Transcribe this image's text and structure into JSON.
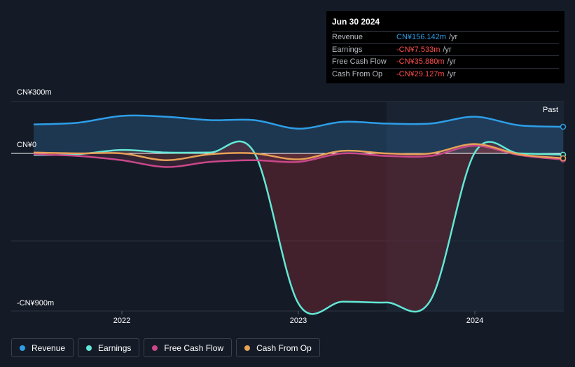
{
  "chart_data": {
    "type": "line",
    "x_ticks": [
      "2022",
      "2023",
      "2024"
    ],
    "y_ticks": [
      "CN¥300m",
      "CN¥0",
      "-CN¥900m"
    ],
    "region_label": "Past",
    "series": [
      {
        "name": "Revenue",
        "color": "#2d9ee8",
        "x": [
          2021.5,
          2021.75,
          2022.0,
          2022.25,
          2022.5,
          2022.75,
          2023.0,
          2023.25,
          2023.5,
          2023.75,
          2024.0,
          2024.25,
          2024.5
        ],
        "y": [
          170,
          180,
          220,
          215,
          195,
          195,
          145,
          185,
          175,
          175,
          215,
          165,
          156
        ]
      },
      {
        "name": "Earnings",
        "color": "#62e8d6",
        "x": [
          2021.5,
          2021.75,
          2022.0,
          2022.25,
          2022.5,
          2022.75,
          2023.0,
          2023.25,
          2023.5,
          2023.75,
          2024.0,
          2024.25,
          2024.5
        ],
        "y": [
          -10,
          -5,
          20,
          5,
          5,
          5,
          -880,
          -870,
          -875,
          -860,
          5,
          0,
          -7.5
        ]
      },
      {
        "name": "Free Cash Flow",
        "color": "#c9478a",
        "x": [
          2021.5,
          2021.75,
          2022.0,
          2022.25,
          2022.5,
          2022.75,
          2023.0,
          2023.25,
          2023.5,
          2023.75,
          2024.0,
          2024.25,
          2024.5
        ],
        "y": [
          -5,
          -15,
          -40,
          -80,
          -50,
          -40,
          -50,
          0,
          -15,
          -15,
          45,
          -10,
          -36
        ]
      },
      {
        "name": "Cash From Op",
        "color": "#e6a157",
        "x": [
          2021.5,
          2021.75,
          2022.0,
          2022.25,
          2022.5,
          2022.75,
          2023.0,
          2023.25,
          2023.5,
          2023.75,
          2024.0,
          2024.25,
          2024.5
        ],
        "y": [
          5,
          0,
          0,
          -40,
          -5,
          0,
          -35,
          15,
          0,
          0,
          55,
          -5,
          -29
        ]
      }
    ],
    "ylim": [
      -900,
      300
    ]
  },
  "tooltip": {
    "date": "Jun 30 2024",
    "rows": [
      {
        "label": "Revenue",
        "value": "CN¥156.142m",
        "unit": "/yr",
        "color": "#2d9ee8"
      },
      {
        "label": "Earnings",
        "value": "-CN¥7.533m",
        "unit": "/yr",
        "color": "#ff4d4d"
      },
      {
        "label": "Free Cash Flow",
        "value": "-CN¥35.880m",
        "unit": "/yr",
        "color": "#ff4d4d"
      },
      {
        "label": "Cash From Op",
        "value": "-CN¥29.127m",
        "unit": "/yr",
        "color": "#ff4d4d"
      }
    ]
  },
  "legend": [
    {
      "label": "Revenue",
      "color": "#2d9ee8"
    },
    {
      "label": "Earnings",
      "color": "#62e8d6"
    },
    {
      "label": "Free Cash Flow",
      "color": "#c9478a"
    },
    {
      "label": "Cash From Op",
      "color": "#e6a157"
    }
  ]
}
